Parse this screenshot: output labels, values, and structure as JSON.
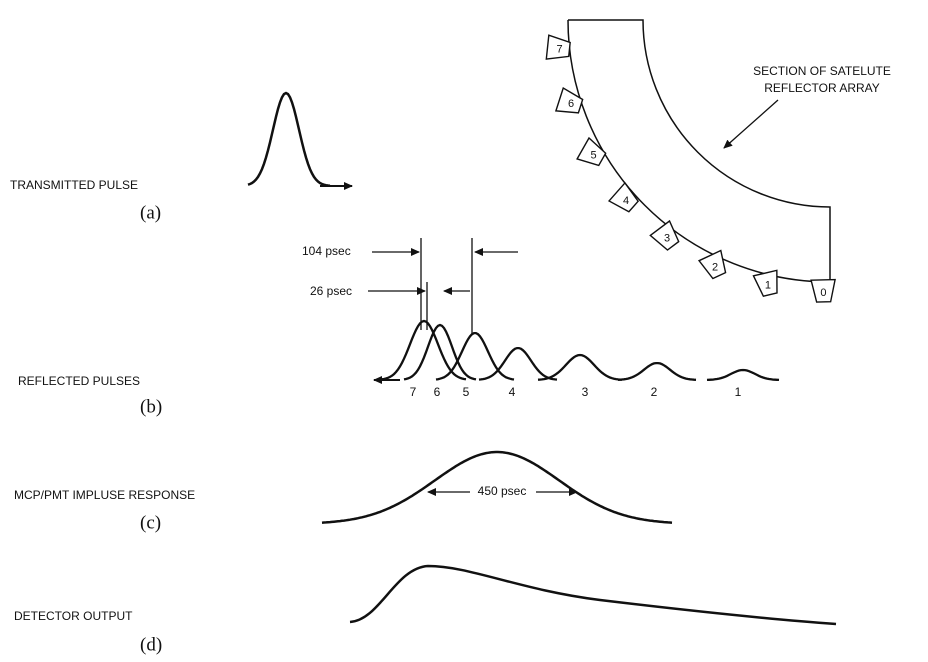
{
  "panels": [
    {
      "label": "TRANSMITTED PULSE",
      "letter": "(a)"
    },
    {
      "label": "REFLECTED PULSES",
      "letter": "(b)"
    },
    {
      "label": "MCP/PMT IMPLUSE RESPONSE",
      "letter": "(c)"
    },
    {
      "label": "DETECTOR OUTPUT",
      "letter": "(d)"
    }
  ],
  "reflector": {
    "title": [
      "SECTION OF SATELUTE",
      "REFLECTOR ARRAY"
    ],
    "elements": [
      "7",
      "6",
      "5",
      "4",
      "3",
      "2",
      "1",
      "0"
    ]
  },
  "timings": [
    "104 psec",
    "26 psec"
  ],
  "pulse_labels": [
    "7",
    "6",
    "5",
    "4",
    "3",
    "2",
    "1"
  ],
  "response_width": "450 psec"
}
